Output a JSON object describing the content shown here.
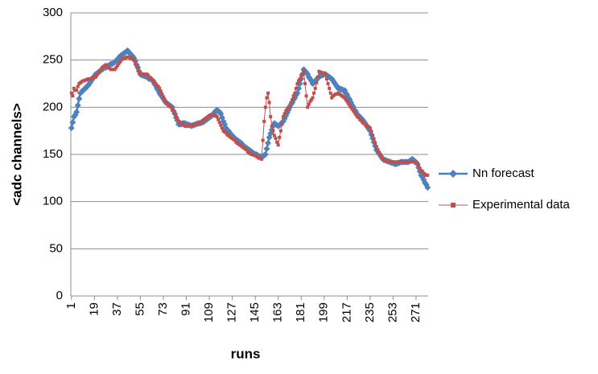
{
  "chart_data": {
    "type": "line",
    "x_label": "runs",
    "y_label": "<adc channels>",
    "categories": [
      "1",
      null,
      null,
      null,
      null,
      null,
      null,
      null,
      null,
      null,
      null,
      null,
      null,
      null,
      null,
      null,
      null,
      null,
      "19",
      null,
      null,
      null,
      null,
      null,
      null,
      null,
      null,
      null,
      null,
      null,
      null,
      null,
      null,
      null,
      null,
      null,
      "37",
      null,
      null,
      null,
      null,
      null,
      null,
      null,
      null,
      null,
      null,
      null,
      null,
      null,
      null,
      null,
      null,
      null,
      "55",
      null,
      null,
      null,
      null,
      null,
      null,
      null,
      null,
      null,
      null,
      null,
      null,
      null,
      null,
      null,
      null,
      null,
      "73",
      null,
      null,
      null,
      null,
      null,
      null,
      null,
      null,
      null,
      null,
      null,
      null,
      null,
      null,
      null,
      null,
      null,
      "91",
      null,
      null,
      null,
      null,
      null,
      null,
      null,
      null,
      null,
      null,
      null,
      null,
      null,
      null,
      null,
      null,
      null,
      "109",
      null,
      null,
      null,
      null,
      null,
      null,
      null,
      null,
      null,
      null,
      null,
      null,
      null,
      null,
      null,
      null,
      null,
      "127",
      null,
      null,
      null,
      null,
      null,
      null,
      null,
      null,
      null,
      null,
      null,
      null,
      null,
      null,
      null,
      null,
      null,
      "145",
      null,
      null,
      null,
      null,
      null,
      null,
      null,
      null,
      null,
      null,
      null,
      null,
      null,
      null,
      null,
      null,
      null,
      "163",
      null,
      null,
      null,
      null,
      null,
      null,
      null,
      null,
      null,
      null,
      null,
      null,
      null,
      null,
      null,
      null,
      null,
      "181",
      null,
      null,
      null,
      null,
      null,
      null,
      null,
      null,
      null,
      null,
      null,
      null,
      null,
      null,
      null,
      null,
      null,
      "199",
      null,
      null,
      null,
      null,
      null,
      null,
      null,
      null,
      null,
      null,
      null,
      null,
      null,
      null,
      null,
      null,
      null,
      "217",
      null,
      null,
      null,
      null,
      null,
      null,
      null,
      null,
      null,
      null,
      null,
      null,
      null,
      null,
      null,
      null,
      null,
      "235",
      null,
      null,
      null,
      null,
      null,
      null,
      null,
      null,
      null,
      null,
      null,
      null,
      null,
      null,
      null,
      null,
      null,
      "253",
      null,
      null,
      null,
      null,
      null,
      null,
      null,
      null,
      null,
      null,
      null,
      null,
      null,
      null,
      null,
      null,
      null,
      "271",
      null,
      null,
      null,
      null,
      null,
      null,
      null,
      null,
      null
    ],
    "series": [
      {
        "name": "Nn forecast",
        "color": "#4f81bd",
        "marker": "diamond",
        "values": [
          178,
          184,
          190,
          192,
          195,
          202,
          209,
          215,
          216,
          218,
          219,
          220,
          222,
          223,
          225,
          227,
          229,
          231,
          233,
          235,
          236,
          237,
          238,
          239,
          240,
          241,
          242,
          242,
          243,
          244,
          245,
          246,
          246,
          247,
          248,
          249,
          251,
          252,
          254,
          255,
          256,
          257,
          258,
          259,
          260,
          258,
          257,
          255,
          254,
          252,
          249,
          245,
          242,
          238,
          235,
          234,
          234,
          233,
          233,
          232,
          231,
          230,
          230,
          229,
          228,
          225,
          223,
          220,
          218,
          215,
          213,
          211,
          209,
          207,
          205,
          204,
          203,
          202,
          201,
          200,
          196,
          193,
          189,
          186,
          182,
          182,
          182,
          183,
          183,
          183,
          182,
          182,
          181,
          181,
          180,
          181,
          181,
          182,
          182,
          183,
          183,
          183,
          184,
          184,
          185,
          186,
          187,
          188,
          189,
          190,
          191,
          193,
          194,
          196,
          197,
          196,
          195,
          193,
          189,
          185,
          182,
          178,
          176,
          175,
          173,
          171,
          170,
          168,
          167,
          166,
          165,
          164,
          163,
          162,
          160,
          159,
          158,
          157,
          156,
          155,
          154,
          153,
          152,
          151,
          150,
          150,
          149,
          148,
          148,
          147,
          148,
          149,
          150,
          156,
          162,
          168,
          172,
          176,
          180,
          183,
          182,
          181,
          180,
          181,
          182,
          184,
          185,
          188,
          191,
          194,
          197,
          200,
          203,
          205,
          208,
          210,
          213,
          215,
          220,
          225,
          230,
          235,
          240,
          238,
          237,
          235,
          232,
          230,
          228,
          225,
          226,
          228,
          229,
          231,
          232,
          233,
          234,
          234,
          235,
          235,
          234,
          233,
          232,
          231,
          230,
          228,
          226,
          224,
          222,
          220,
          220,
          219,
          219,
          218,
          218,
          215,
          213,
          210,
          208,
          205,
          202,
          200,
          197,
          195,
          192,
          191,
          190,
          188,
          187,
          185,
          183,
          181,
          179,
          177,
          175,
          171,
          167,
          163,
          159,
          155,
          153,
          151,
          149,
          147,
          145,
          144,
          144,
          143,
          143,
          142,
          142,
          141,
          141,
          140,
          140,
          140,
          141,
          141,
          142,
          142,
          142,
          142,
          142,
          142,
          142,
          143,
          144,
          145,
          144,
          143,
          141,
          140,
          136,
          132,
          128,
          126,
          123,
          120,
          118,
          115
        ]
      },
      {
        "name": "Experimental data",
        "color": "#c0504d",
        "marker": "square",
        "values": [
          215,
          212,
          220,
          218,
          218,
          222,
          225,
          226,
          227,
          228,
          228,
          229,
          229,
          230,
          230,
          230,
          231,
          231,
          232,
          232,
          234,
          236,
          238,
          240,
          242,
          243,
          244,
          245,
          243,
          242,
          241,
          240,
          240,
          240,
          240,
          242,
          244,
          246,
          248,
          250,
          251,
          252,
          252,
          253,
          253,
          253,
          252,
          252,
          251,
          250,
          247,
          244,
          241,
          238,
          235,
          235,
          235,
          235,
          235,
          235,
          234,
          232,
          231,
          229,
          228,
          226,
          225,
          223,
          222,
          220,
          217,
          214,
          211,
          208,
          205,
          204,
          202,
          201,
          200,
          198,
          196,
          193,
          190,
          188,
          185,
          184,
          183,
          182,
          181,
          180,
          180,
          180,
          181,
          181,
          181,
          181,
          182,
          182,
          182,
          182,
          183,
          184,
          185,
          186,
          187,
          188,
          189,
          190,
          191,
          192,
          192,
          192,
          191,
          191,
          190,
          187,
          184,
          181,
          178,
          175,
          174,
          173,
          171,
          170,
          169,
          168,
          167,
          166,
          165,
          163,
          162,
          161,
          160,
          159,
          158,
          157,
          156,
          155,
          153,
          152,
          151,
          150,
          150,
          149,
          149,
          148,
          147,
          146,
          146,
          145,
          165,
          185,
          200,
          210,
          215,
          205,
          190,
          180,
          175,
          170,
          167,
          163,
          160,
          168,
          175,
          182,
          190,
          193,
          196,
          198,
          200,
          200,
          205,
          208,
          212,
          215,
          220,
          225,
          228,
          230,
          233,
          235,
          238,
          225,
          212,
          200,
          203,
          206,
          208,
          210,
          215,
          220,
          226,
          232,
          238,
          237,
          237,
          236,
          236,
          235,
          230,
          225,
          220,
          215,
          210,
          212,
          213,
          214,
          214,
          215,
          214,
          213,
          212,
          211,
          210,
          208,
          206,
          204,
          202,
          200,
          198,
          196,
          194,
          192,
          190,
          189,
          187,
          186,
          184,
          183,
          182,
          181,
          180,
          179,
          178,
          174,
          170,
          166,
          162,
          158,
          155,
          152,
          150,
          147,
          145,
          144,
          144,
          143,
          143,
          142,
          142,
          142,
          142,
          142,
          142,
          142,
          142,
          142,
          142,
          142,
          142,
          142,
          142,
          142,
          142,
          142,
          142,
          142,
          142,
          142,
          142,
          141,
          138,
          135,
          133,
          132,
          130,
          129,
          128,
          128
        ]
      }
    ],
    "ylim": [
      0,
      300
    ],
    "yticks": [
      0,
      50,
      100,
      150,
      200,
      250,
      300
    ],
    "grid": true,
    "legend": "right"
  }
}
